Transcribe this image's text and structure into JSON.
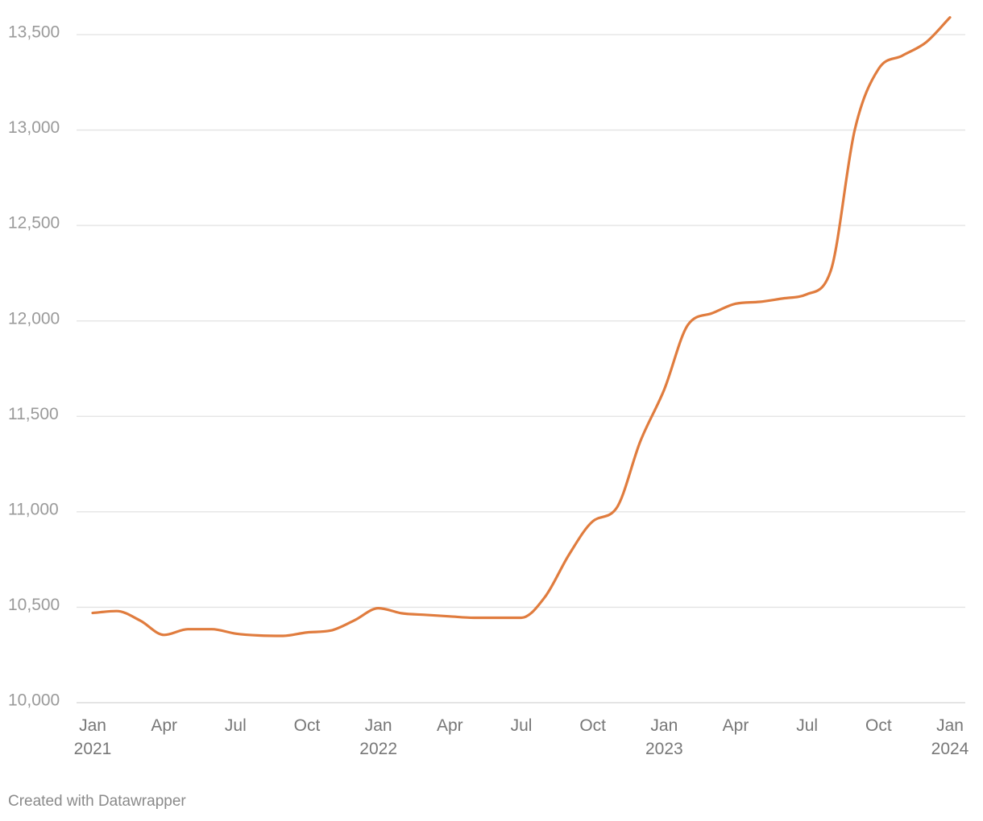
{
  "chart_data": {
    "type": "line",
    "title": "",
    "xlabel": "",
    "ylabel": "",
    "ylim": [
      10000,
      13500
    ],
    "y_ticks": [
      10000,
      10500,
      11000,
      11500,
      12000,
      12500,
      13000,
      13500
    ],
    "y_tick_labels": [
      "10,000",
      "10,500",
      "11,000",
      "11,500",
      "12,000",
      "12,500",
      "13,000",
      "13,500"
    ],
    "x_ticks": [
      {
        "date": "2021-01",
        "month": "Jan",
        "year": "2021"
      },
      {
        "date": "2021-04",
        "month": "Apr",
        "year": ""
      },
      {
        "date": "2021-07",
        "month": "Jul",
        "year": ""
      },
      {
        "date": "2021-10",
        "month": "Oct",
        "year": ""
      },
      {
        "date": "2022-01",
        "month": "Jan",
        "year": "2022"
      },
      {
        "date": "2022-04",
        "month": "Apr",
        "year": ""
      },
      {
        "date": "2022-07",
        "month": "Jul",
        "year": ""
      },
      {
        "date": "2022-10",
        "month": "Oct",
        "year": ""
      },
      {
        "date": "2023-01",
        "month": "Jan",
        "year": "2023"
      },
      {
        "date": "2023-04",
        "month": "Apr",
        "year": ""
      },
      {
        "date": "2023-07",
        "month": "Jul",
        "year": ""
      },
      {
        "date": "2023-10",
        "month": "Oct",
        "year": ""
      },
      {
        "date": "2024-01",
        "month": "Jan",
        "year": "2024"
      }
    ],
    "grid": true,
    "legend": "none",
    "series": [
      {
        "color": "#e07c3e",
        "points": [
          [
            "2021-01",
            10470
          ],
          [
            "2021-02",
            10480
          ],
          [
            "2021-03",
            10430
          ],
          [
            "2021-04",
            10355
          ],
          [
            "2021-05",
            10385
          ],
          [
            "2021-06",
            10385
          ],
          [
            "2021-07",
            10362
          ],
          [
            "2021-08",
            10352
          ],
          [
            "2021-09",
            10350
          ],
          [
            "2021-10",
            10368
          ],
          [
            "2021-11",
            10378
          ],
          [
            "2021-12",
            10432
          ],
          [
            "2022-01",
            10495
          ],
          [
            "2022-02",
            10468
          ],
          [
            "2022-03",
            10460
          ],
          [
            "2022-04",
            10452
          ],
          [
            "2022-05",
            10445
          ],
          [
            "2022-06",
            10445
          ],
          [
            "2022-07",
            10445
          ],
          [
            "2022-08",
            10555
          ],
          [
            "2022-09",
            10775
          ],
          [
            "2022-10",
            10950
          ],
          [
            "2022-11",
            11020
          ],
          [
            "2022-12",
            11370
          ],
          [
            "2023-01",
            11640
          ],
          [
            "2023-02",
            11980
          ],
          [
            "2023-03",
            12040
          ],
          [
            "2023-04",
            12090
          ],
          [
            "2023-05",
            12100
          ],
          [
            "2023-06",
            12118
          ],
          [
            "2023-07",
            12140
          ],
          [
            "2023-08",
            12265
          ],
          [
            "2023-09",
            13000
          ],
          [
            "2023-10",
            13320
          ],
          [
            "2023-11",
            13390
          ],
          [
            "2023-12",
            13460
          ],
          [
            "2024-01",
            13590
          ]
        ]
      }
    ]
  },
  "footer": {
    "credit": "Created with Datawrapper"
  }
}
